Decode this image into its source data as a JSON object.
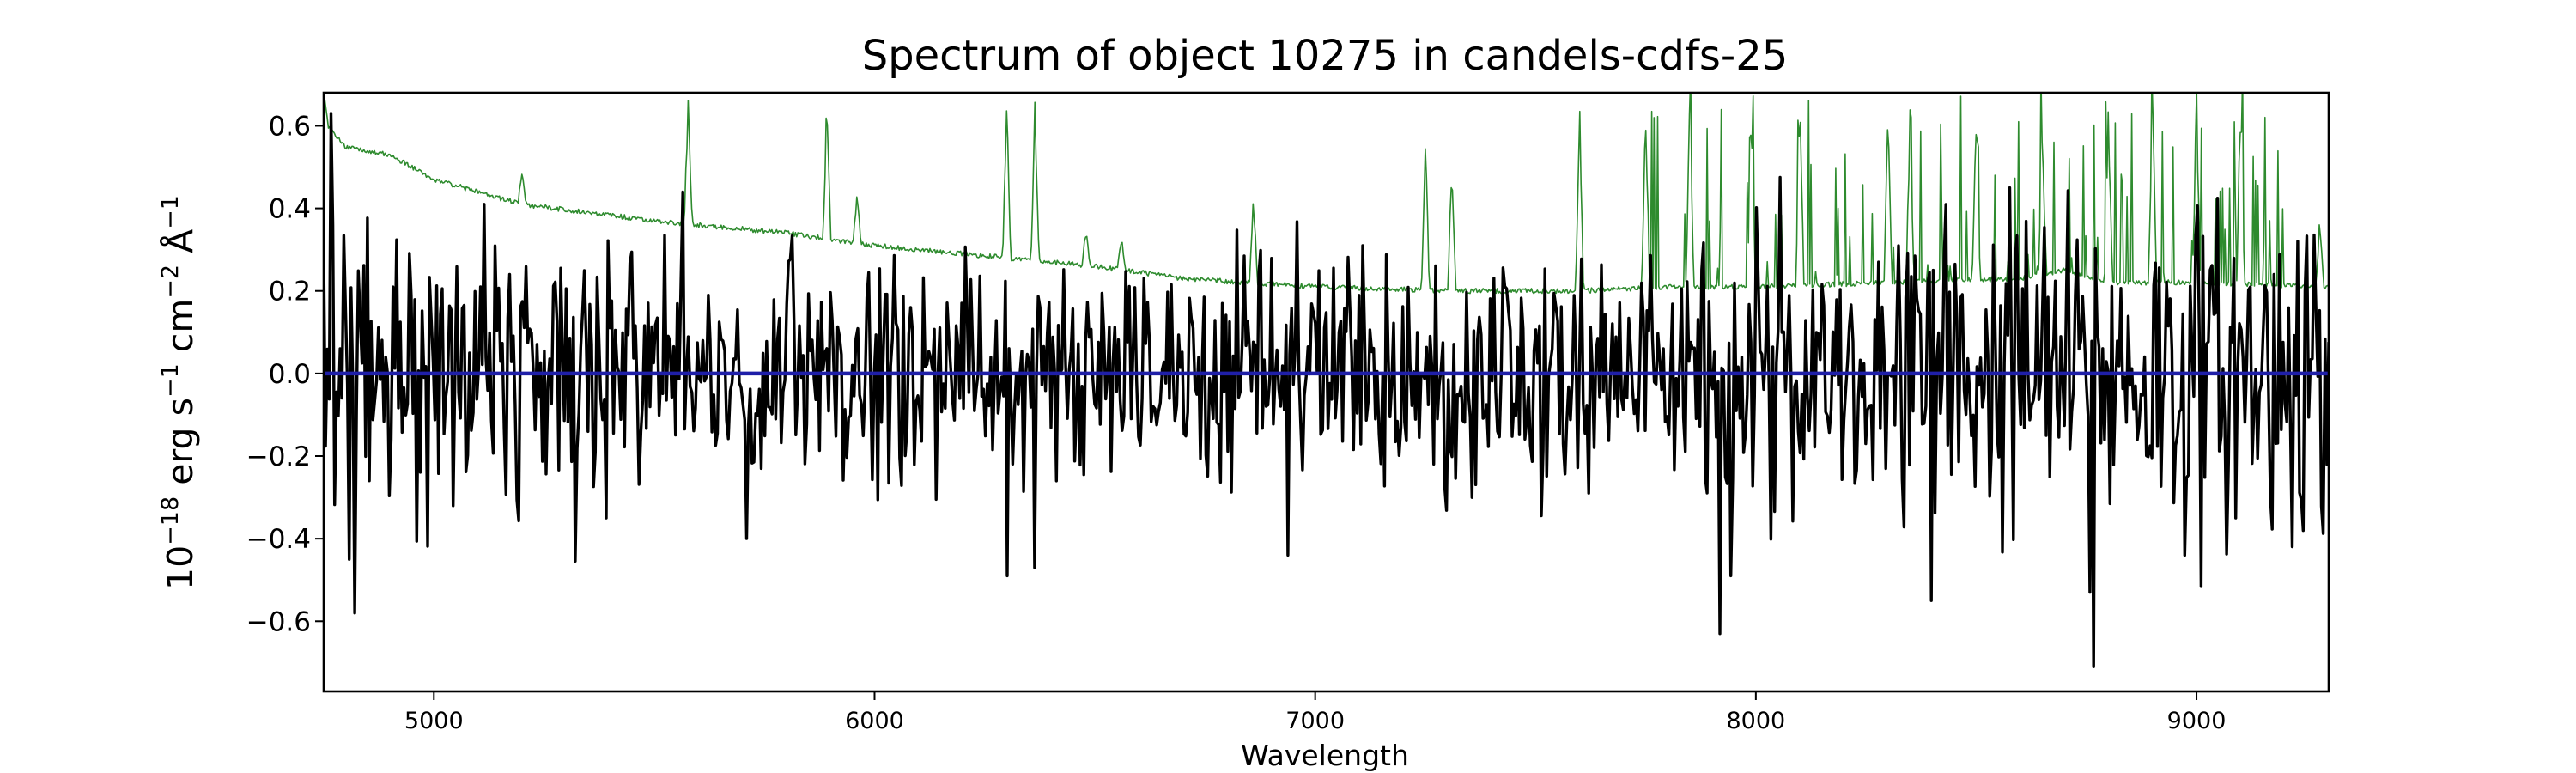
{
  "chart_data": {
    "type": "line",
    "title": "Spectrum of object 10275 in candels-cdfs-25",
    "xlabel": "Wavelength",
    "ylabel": {
      "base": "10",
      "exp_base": "−18",
      "erg": " erg s",
      "exp_s": "−1",
      "cm": " cm",
      "exp_cm": "−2",
      "angstrom": " Å",
      "exp_angstrom": "−1"
    },
    "xlim": [
      4750,
      9300
    ],
    "ylim": [
      -0.77,
      0.68
    ],
    "x_ticks": [
      5000,
      6000,
      7000,
      8000,
      9000
    ],
    "x_tick_labels": [
      "5000",
      "6000",
      "7000",
      "8000",
      "9000"
    ],
    "y_ticks": [
      -0.6,
      -0.4,
      -0.2,
      0.0,
      0.2,
      0.4,
      0.6
    ],
    "y_tick_labels": [
      "−0.6",
      "−0.4",
      "−0.2",
      "0.0",
      "0.2",
      "0.4",
      "0.6"
    ],
    "grid": false,
    "legend": "none",
    "series": [
      {
        "role": "flux",
        "color": "#000000",
        "x_start": 4750,
        "x_end": 9300,
        "points": 1100,
        "amplitude_sigma": [
          [
            4750,
            0.17
          ],
          [
            6000,
            0.15
          ],
          [
            7000,
            0.13
          ],
          [
            7600,
            0.15
          ],
          [
            8300,
            0.19
          ],
          [
            9300,
            0.2
          ]
        ],
        "notable_values": [
          [
            4768,
            0.63
          ],
          [
            4808,
            -0.45
          ],
          [
            4820,
            -0.58
          ],
          [
            5115,
            0.41
          ],
          [
            5565,
            0.44
          ],
          [
            5710,
            -0.4
          ],
          [
            6300,
            0.38
          ],
          [
            6300,
            -0.49
          ],
          [
            6365,
            -0.47
          ],
          [
            6940,
            -0.44
          ],
          [
            7920,
            -0.63
          ],
          [
            7945,
            -0.49
          ],
          [
            8280,
            0.27
          ],
          [
            8400,
            -0.55
          ],
          [
            8575,
            0.45
          ],
          [
            8765,
            -0.71
          ],
          [
            8760,
            -0.53
          ],
          [
            9230,
            0.32
          ]
        ]
      },
      {
        "role": "error",
        "color": "#2e8b2e",
        "baseline": [
          [
            4750,
            0.68
          ],
          [
            4760,
            0.6
          ],
          [
            4800,
            0.55
          ],
          [
            4900,
            0.53
          ],
          [
            5000,
            0.47
          ],
          [
            5200,
            0.41
          ],
          [
            5500,
            0.37
          ],
          [
            5800,
            0.34
          ],
          [
            6000,
            0.31
          ],
          [
            6300,
            0.28
          ],
          [
            6500,
            0.26
          ],
          [
            6700,
            0.23
          ],
          [
            7000,
            0.21
          ],
          [
            7300,
            0.2
          ],
          [
            7600,
            0.2
          ],
          [
            7800,
            0.21
          ],
          [
            8000,
            0.21
          ],
          [
            8300,
            0.22
          ],
          [
            8600,
            0.23
          ],
          [
            8700,
            0.25
          ],
          [
            8800,
            0.22
          ],
          [
            9000,
            0.22
          ],
          [
            9300,
            0.21
          ]
        ],
        "emission_features": [
          [
            5200,
            0.5
          ],
          [
            5577,
            0.7
          ],
          [
            5892,
            0.7
          ],
          [
            5960,
            0.45
          ],
          [
            6300,
            0.7
          ],
          [
            6364,
            0.7
          ],
          [
            6480,
            0.36
          ],
          [
            6560,
            0.34
          ],
          [
            6860,
            0.45
          ],
          [
            7250,
            0.62
          ],
          [
            7310,
            0.55
          ],
          [
            7600,
            0.7
          ],
          [
            7750,
            0.7
          ],
          [
            7850,
            0.7
          ],
          [
            7990,
            0.7
          ],
          [
            8100,
            0.7
          ],
          [
            8300,
            0.7
          ],
          [
            8350,
            0.7
          ],
          [
            8500,
            0.7
          ],
          [
            8650,
            0.58
          ],
          [
            8800,
            0.7
          ],
          [
            8900,
            0.7
          ],
          [
            9000,
            0.7
          ],
          [
            9100,
            0.7
          ],
          [
            9280,
            0.39
          ]
        ]
      },
      {
        "role": "zero-level",
        "color": "#1f1fa8",
        "x": [
          4750,
          9300
        ],
        "y": [
          0.0,
          0.0
        ]
      }
    ]
  }
}
